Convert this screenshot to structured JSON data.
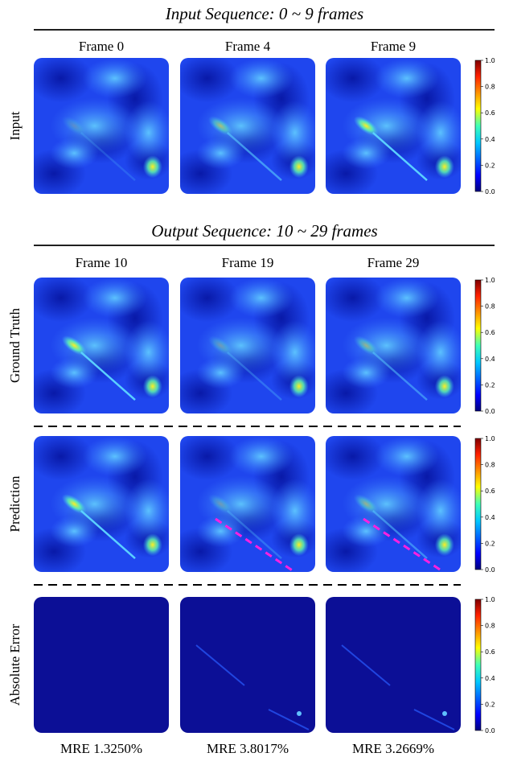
{
  "sections": [
    {
      "title": "Input Sequence: 0 ~ 9 frames",
      "frames": [
        "Frame 0",
        "Frame 4",
        "Frame 9"
      ],
      "rows": [
        "Input"
      ]
    },
    {
      "title": "Output Sequence: 10 ~ 29 frames",
      "frames": [
        "Frame 10",
        "Frame 19",
        "Frame 29"
      ],
      "rows": [
        "Ground Truth",
        "Prediction",
        "Absolute Error"
      ]
    }
  ],
  "colorbar_ticks": [
    "0.0",
    "0.2",
    "0.4",
    "0.6",
    "0.8",
    "1.0"
  ],
  "mre": [
    "MRE 1.3250%",
    "MRE 3.8017%",
    "MRE 3.2669%"
  ]
}
